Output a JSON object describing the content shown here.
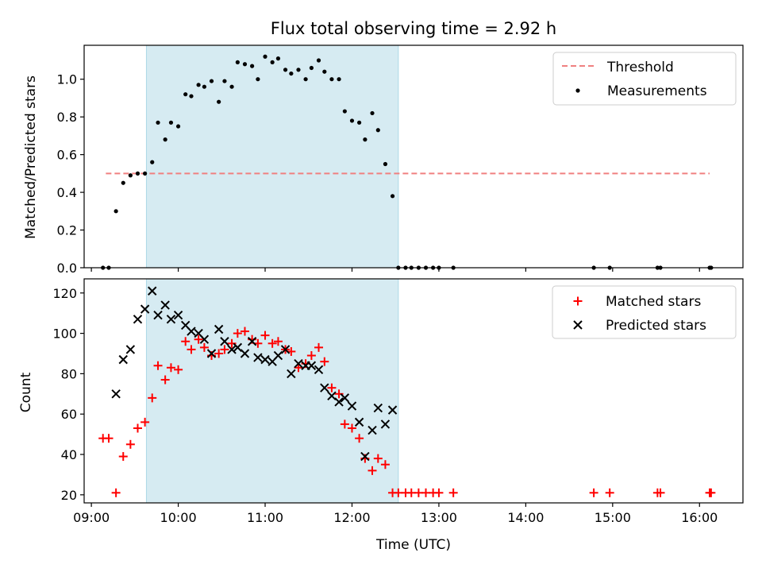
{
  "chart_data": [
    {
      "type": "scatter",
      "title": "Flux total observing time = 2.92 h",
      "xlabel": "",
      "ylabel": "Matched/Predicted stars",
      "xlim": [
        "08:55",
        "16:30"
      ],
      "ylim": [
        0,
        1.18
      ],
      "yticks": [
        "0.0",
        "0.2",
        "0.4",
        "0.6",
        "0.8",
        "1.0"
      ],
      "highlight_span": [
        "09:38",
        "12:32"
      ],
      "legend_position": "top-right",
      "threshold": {
        "name": "Threshold",
        "value": 0.5,
        "x_range": [
          "09:10",
          "16:07"
        ],
        "color": "#f08080"
      },
      "series": [
        {
          "name": "Measurements",
          "color": "#000000",
          "x": [
            "09:08",
            "09:12",
            "09:17",
            "09:22",
            "09:27",
            "09:32",
            "09:37",
            "09:42",
            "09:46",
            "09:51",
            "09:55",
            "10:00",
            "10:05",
            "10:09",
            "10:14",
            "10:18",
            "10:23",
            "10:28",
            "10:32",
            "10:37",
            "10:41",
            "10:46",
            "10:51",
            "10:55",
            "11:00",
            "11:05",
            "11:09",
            "11:14",
            "11:18",
            "11:23",
            "11:28",
            "11:32",
            "11:37",
            "11:41",
            "11:46",
            "11:51",
            "11:55",
            "12:00",
            "12:05",
            "12:09",
            "12:14",
            "12:18",
            "12:23",
            "12:28",
            "12:32",
            "12:37",
            "12:41",
            "12:46",
            "12:51",
            "12:56",
            "13:00",
            "13:10",
            "14:47",
            "14:58",
            "15:31",
            "15:33",
            "16:07",
            "16:08"
          ],
          "y": [
            0.0,
            0.0,
            0.3,
            0.45,
            0.49,
            0.5,
            0.5,
            0.56,
            0.77,
            0.68,
            0.77,
            0.75,
            0.92,
            0.91,
            0.97,
            0.96,
            0.99,
            0.88,
            0.99,
            0.96,
            1.09,
            1.08,
            1.07,
            1.0,
            1.12,
            1.09,
            1.11,
            1.05,
            1.03,
            1.05,
            1.0,
            1.06,
            1.1,
            1.04,
            1.0,
            1.0,
            0.83,
            0.78,
            0.77,
            0.68,
            0.82,
            0.73,
            0.55,
            0.38,
            0.0,
            0.0,
            0.0,
            0.0,
            0.0,
            0.0,
            0.0,
            0.0,
            0.0,
            0.0,
            0.0,
            0.0,
            0.0,
            0.0
          ]
        }
      ]
    },
    {
      "type": "scatter",
      "title": "",
      "xlabel": "Time (UTC)",
      "ylabel": "Count",
      "xlim": [
        "08:55",
        "16:30"
      ],
      "ylim": [
        16,
        127
      ],
      "yticks": [
        "20",
        "40",
        "60",
        "80",
        "100",
        "120"
      ],
      "xticks": [
        "09:00",
        "10:00",
        "11:00",
        "12:00",
        "13:00",
        "14:00",
        "15:00",
        "16:00"
      ],
      "highlight_span": [
        "09:38",
        "12:32"
      ],
      "legend_position": "top-right",
      "series": [
        {
          "name": "Matched stars",
          "marker": "plus",
          "color": "#ff0000",
          "x": [
            "09:08",
            "09:12",
            "09:17",
            "09:22",
            "09:27",
            "09:32",
            "09:37",
            "09:42",
            "09:46",
            "09:51",
            "09:55",
            "10:00",
            "10:05",
            "10:09",
            "10:14",
            "10:18",
            "10:23",
            "10:28",
            "10:32",
            "10:37",
            "10:41",
            "10:46",
            "10:51",
            "10:55",
            "11:00",
            "11:05",
            "11:09",
            "11:14",
            "11:18",
            "11:23",
            "11:28",
            "11:32",
            "11:37",
            "11:41",
            "11:46",
            "11:51",
            "11:55",
            "12:00",
            "12:05",
            "12:09",
            "12:14",
            "12:18",
            "12:23",
            "12:28",
            "12:32",
            "12:37",
            "12:41",
            "12:46",
            "12:51",
            "12:56",
            "13:00",
            "13:10",
            "14:47",
            "14:58",
            "15:31",
            "15:33",
            "16:07",
            "16:08"
          ],
          "y": [
            48,
            48,
            21,
            39,
            45,
            53,
            56,
            68,
            84,
            77,
            83,
            82,
            96,
            92,
            97,
            93,
            89,
            90,
            92,
            95,
            100,
            101,
            97,
            95,
            99,
            95,
            96,
            92,
            91,
            83,
            85,
            89,
            93,
            86,
            73,
            70,
            55,
            53,
            48,
            38,
            32,
            38,
            35,
            21,
            21,
            21,
            21,
            21,
            21,
            21,
            21,
            21,
            21,
            21,
            21,
            21,
            21,
            21
          ]
        },
        {
          "name": "Predicted stars",
          "marker": "x",
          "color": "#000000",
          "x": [
            "09:17",
            "09:22",
            "09:27",
            "09:32",
            "09:37",
            "09:42",
            "09:46",
            "09:51",
            "09:55",
            "10:00",
            "10:05",
            "10:09",
            "10:14",
            "10:18",
            "10:23",
            "10:28",
            "10:32",
            "10:37",
            "10:41",
            "10:46",
            "10:51",
            "10:55",
            "11:00",
            "11:05",
            "11:09",
            "11:14",
            "11:18",
            "11:23",
            "11:28",
            "11:32",
            "11:37",
            "11:41",
            "11:46",
            "11:51",
            "11:55",
            "12:00",
            "12:05",
            "12:09",
            "12:14",
            "12:18",
            "12:23",
            "12:28"
          ],
          "y": [
            70,
            87,
            92,
            107,
            112,
            121,
            109,
            114,
            107,
            109,
            104,
            101,
            100,
            97,
            90,
            102,
            96,
            92,
            93,
            90,
            96,
            88,
            87,
            86,
            89,
            92,
            80,
            85,
            84,
            84,
            82,
            73,
            69,
            66,
            68,
            64,
            56,
            39,
            52,
            63,
            55,
            62
          ]
        }
      ]
    }
  ]
}
